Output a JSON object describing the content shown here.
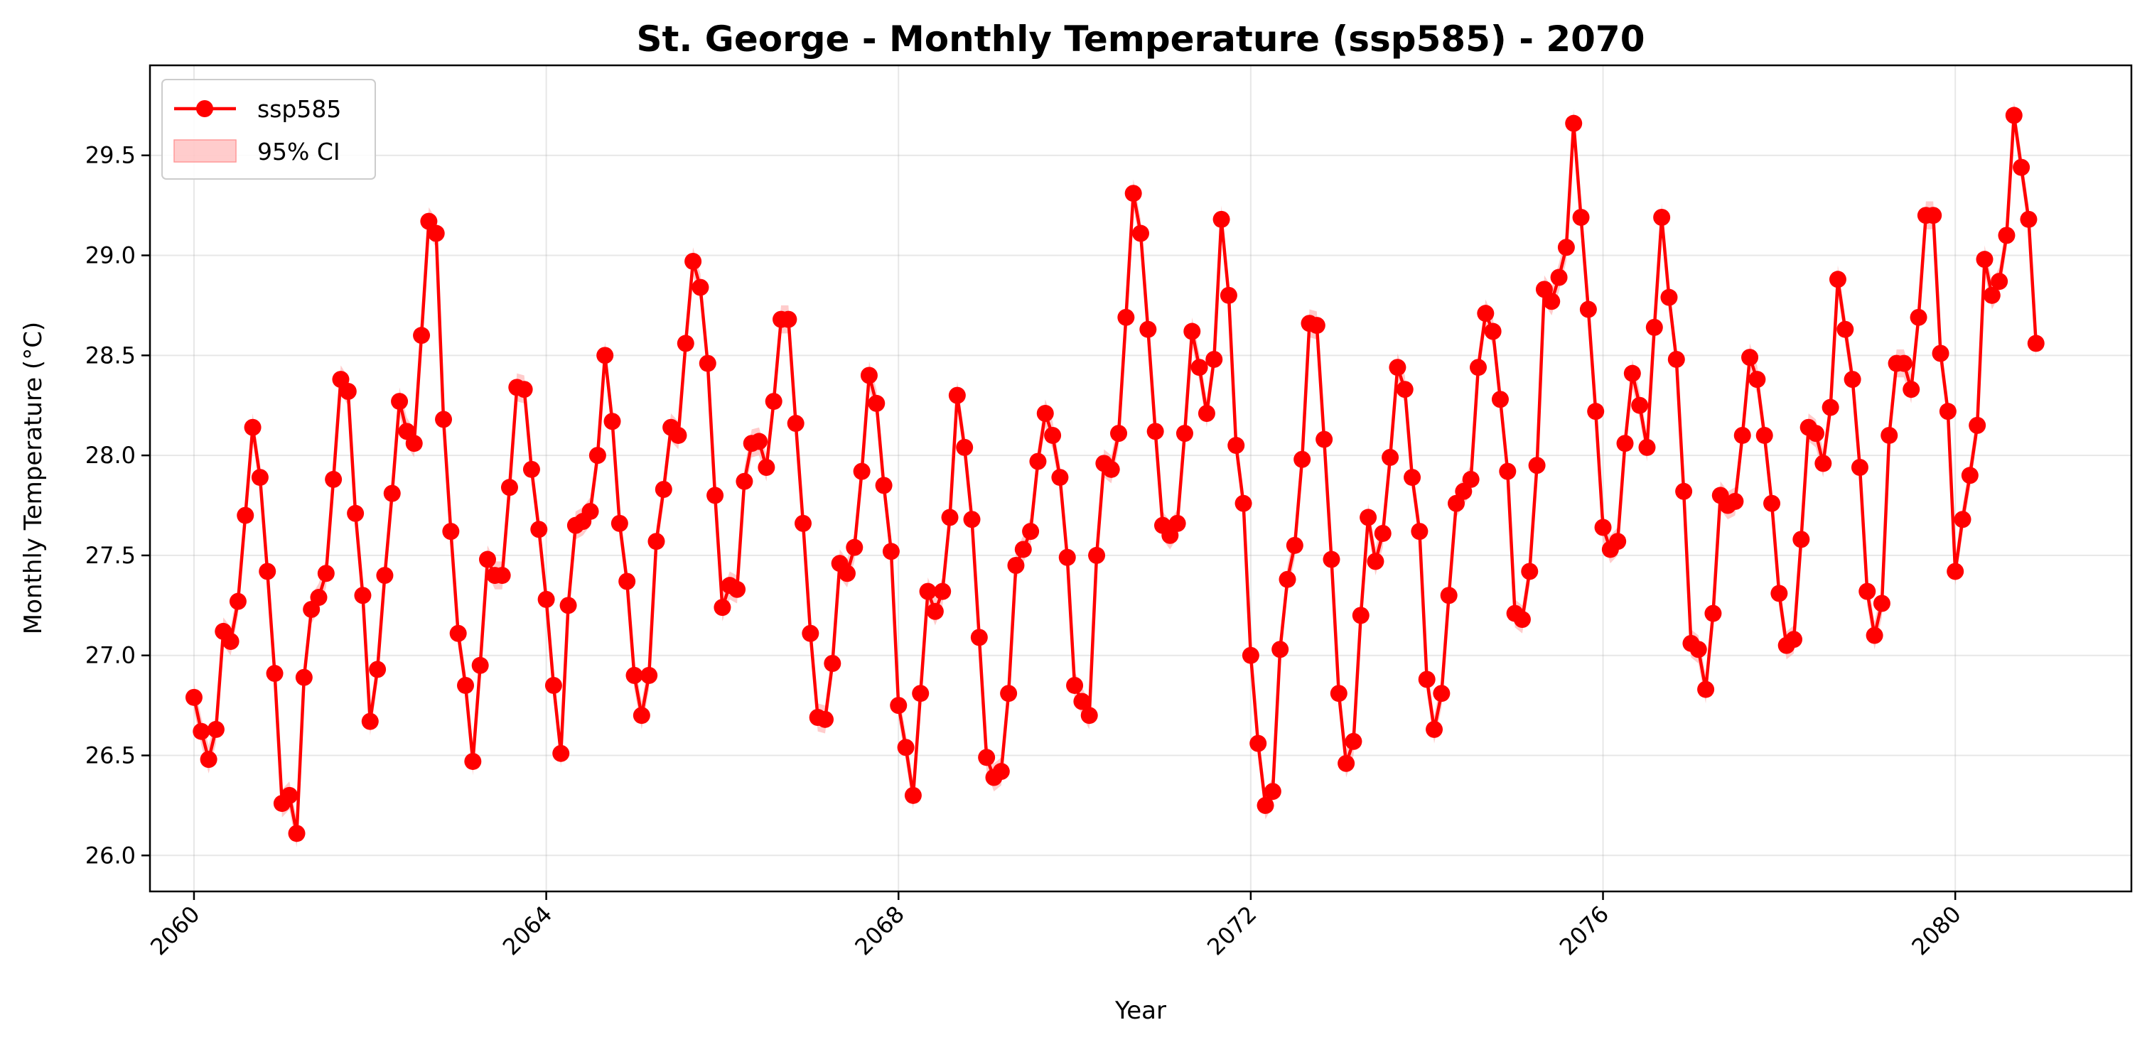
{
  "chart_data": {
    "type": "line",
    "title": "St. George - Monthly Temperature (ssp585) - 2070",
    "xlabel": "Year",
    "ylabel": "Monthly Temperature (°C)",
    "xlim": [
      2059.5,
      2082.0
    ],
    "ylim": [
      25.82,
      29.95
    ],
    "x_ticks": [
      2060,
      2064,
      2068,
      2072,
      2076,
      2080
    ],
    "y_ticks": [
      26.0,
      26.5,
      27.0,
      27.5,
      28.0,
      28.5,
      29.0,
      29.5
    ],
    "grid": true,
    "legend_placement": "top-left",
    "legend": [
      {
        "label": "ssp585",
        "kind": "line-marker"
      },
      {
        "label": "95% CI",
        "kind": "band"
      }
    ],
    "colors": {
      "line": "#ff0000",
      "band": "#ff9999"
    },
    "x_start": 2060,
    "x_step_months": 1,
    "series": [
      {
        "name": "ssp585",
        "values": [
          26.79,
          26.62,
          26.48,
          26.63,
          27.12,
          27.07,
          27.27,
          27.7,
          28.14,
          27.89,
          27.42,
          26.91,
          26.26,
          26.3,
          26.11,
          26.89,
          27.23,
          27.29,
          27.41,
          27.88,
          28.38,
          28.32,
          27.71,
          27.3,
          26.67,
          26.93,
          27.4,
          27.81,
          28.27,
          28.12,
          28.06,
          28.6,
          29.17,
          29.11,
          28.18,
          27.62,
          27.11,
          26.85,
          26.47,
          26.95,
          27.48,
          27.4,
          27.4,
          27.84,
          28.34,
          28.33,
          27.93,
          27.63,
          27.28,
          26.85,
          26.51,
          27.25,
          27.65,
          27.67,
          27.72,
          28.0,
          28.5,
          28.17,
          27.66,
          27.37,
          26.9,
          26.7,
          26.9,
          27.57,
          27.83,
          28.14,
          28.1,
          28.56,
          28.97,
          28.84,
          28.46,
          27.8,
          27.24,
          27.35,
          27.33,
          27.87,
          28.06,
          28.07,
          27.94,
          28.27,
          28.68,
          28.68,
          28.16,
          27.66,
          27.11,
          26.69,
          26.68,
          26.96,
          27.46,
          27.41,
          27.54,
          27.92,
          28.4,
          28.26,
          27.85,
          27.52,
          26.75,
          26.54,
          26.3,
          26.81,
          27.32,
          27.22,
          27.32,
          27.69,
          28.3,
          28.04,
          27.68,
          27.09,
          26.49,
          26.39,
          26.42,
          26.81,
          27.45,
          27.53,
          27.62,
          27.97,
          28.21,
          28.1,
          27.89,
          27.49,
          26.85,
          26.77,
          26.7,
          27.5,
          27.96,
          27.93,
          28.11,
          28.69,
          29.31,
          29.11,
          28.63,
          28.12,
          27.65,
          27.6,
          27.66,
          28.11,
          28.62,
          28.44,
          28.21,
          28.48,
          29.18,
          28.8,
          28.05,
          27.76,
          27.0,
          26.56,
          26.25,
          26.32,
          27.03,
          27.38,
          27.55,
          27.98,
          28.66,
          28.65,
          28.08,
          27.48,
          26.81,
          26.46,
          26.57,
          27.2,
          27.69,
          27.47,
          27.61,
          27.99,
          28.44,
          28.33,
          27.89,
          27.62,
          26.88,
          26.63,
          26.81,
          27.3,
          27.76,
          27.82,
          27.88,
          28.44,
          28.71,
          28.62,
          28.28,
          27.92,
          27.21,
          27.18,
          27.42,
          27.95,
          28.83,
          28.77,
          28.89,
          29.04,
          29.66,
          29.19,
          28.73,
          28.22,
          27.64,
          27.53,
          27.57,
          28.06,
          28.41,
          28.25,
          28.04,
          28.64,
          29.19,
          28.79,
          28.48,
          27.82,
          27.06,
          27.03,
          26.83,
          27.21,
          27.8,
          27.75,
          27.77,
          28.1,
          28.49,
          28.38,
          28.1,
          27.76,
          27.31,
          27.05,
          27.08,
          27.58,
          28.14,
          28.11,
          27.96,
          28.24,
          28.88,
          28.63,
          28.38,
          27.94,
          27.32,
          27.1,
          27.26,
          28.1,
          28.46,
          28.46,
          28.33,
          28.69,
          29.2,
          29.2,
          28.51,
          28.22,
          27.42,
          27.68,
          27.9,
          28.15,
          28.98,
          28.8,
          28.87,
          29.1,
          29.7,
          29.44,
          29.18,
          28.56
        ]
      }
    ]
  }
}
